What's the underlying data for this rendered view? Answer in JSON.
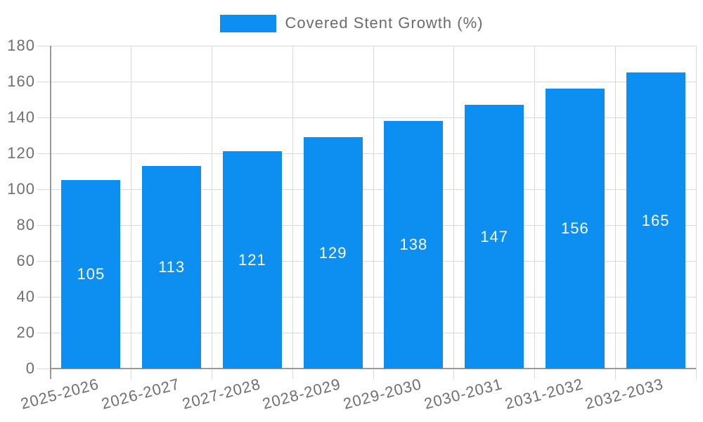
{
  "chart_data": {
    "type": "bar",
    "title": "",
    "legend_label": "Covered Stent Growth (%)",
    "legend_position": "top",
    "categories": [
      "2025-2026",
      "2026-2027",
      "2027-2028",
      "2028-2029",
      "2029-2030",
      "2030-2031",
      "2031-2032",
      "2032-2033"
    ],
    "series": [
      {
        "name": "Covered Stent Growth (%)",
        "values": [
          105,
          113,
          121,
          129,
          138,
          147,
          156,
          165
        ]
      }
    ],
    "value_labels": [
      "105",
      "113",
      "121",
      "129",
      "138",
      "147",
      "156",
      "165"
    ],
    "value_label_position": "center-inside",
    "xlabel": "",
    "ylabel": "",
    "ylim": [
      0,
      180
    ],
    "ytick_interval": 20,
    "yticks": [
      "0",
      "20",
      "40",
      "60",
      "80",
      "100",
      "120",
      "140",
      "160",
      "180"
    ],
    "grid": true,
    "colors": {
      "bar": "#0d8ff2",
      "bar_label": "#ffffff",
      "axis_text": "#6f6f6f",
      "legend_text": "#6b6b6b",
      "grid": "#d9d9d9",
      "axis_line": "#999999",
      "background": "#ffffff"
    }
  }
}
